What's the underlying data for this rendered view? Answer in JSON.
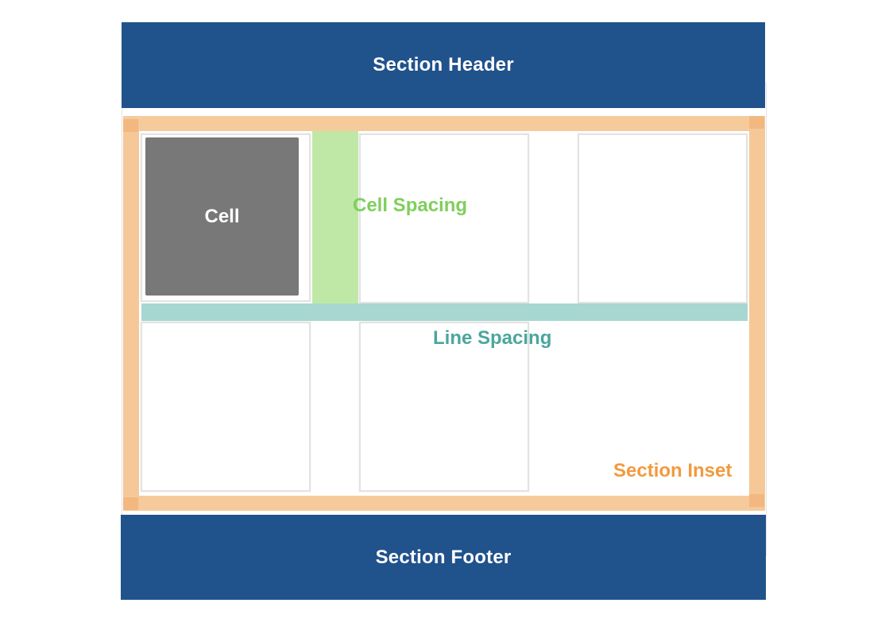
{
  "header": {
    "title": "Section Header"
  },
  "footer": {
    "title": "Section Footer"
  },
  "cell": {
    "label": "Cell"
  },
  "labels": {
    "cell_spacing": "Cell Spacing",
    "line_spacing": "Line Spacing",
    "section_inset": "Section Inset"
  },
  "colors": {
    "band": "#20528c",
    "cell_fill": "#787878",
    "cell_spacing": "#bfe8a6",
    "line_spacing": "#a7d7d0",
    "section_inset": "#f6c897",
    "label_green": "#7fcf5c",
    "label_teal": "#4ba69c",
    "label_orange": "#f29a3f"
  }
}
